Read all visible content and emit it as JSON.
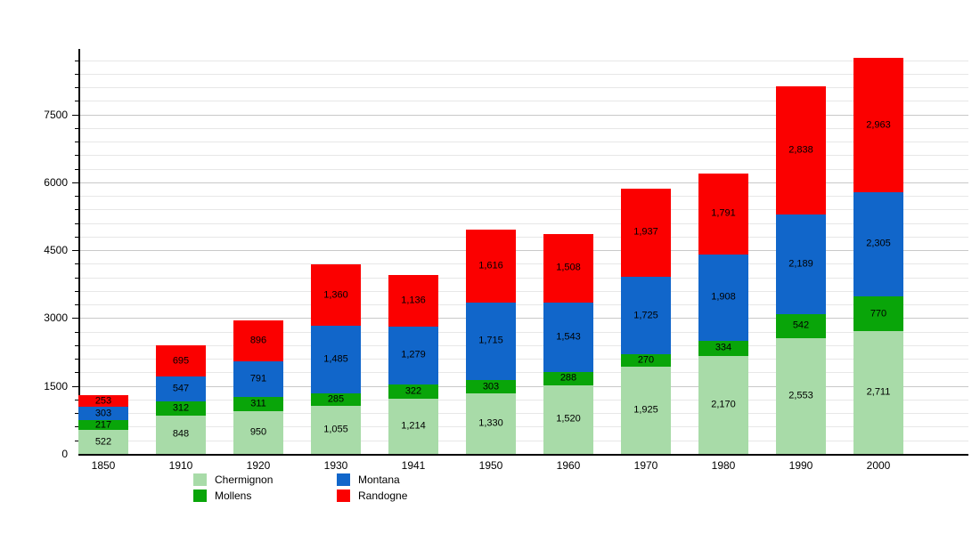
{
  "chart_data": {
    "type": "bar",
    "stacked": true,
    "title": "",
    "xlabel": "",
    "ylabel": "",
    "categories": [
      "1850",
      "1910",
      "1920",
      "1930",
      "1941",
      "1950",
      "1960",
      "1970",
      "1980",
      "1990",
      "2000"
    ],
    "series": [
      {
        "name": "Chermignon",
        "color": "#a8dba8",
        "values": [
          522,
          848,
          950,
          1055,
          1214,
          1330,
          1520,
          1925,
          2170,
          2553,
          2711
        ]
      },
      {
        "name": "Mollens",
        "color": "#09a509",
        "values": [
          217,
          312,
          311,
          285,
          322,
          303,
          288,
          270,
          334,
          542,
          770
        ]
      },
      {
        "name": "Montana",
        "color": "#1166ca",
        "values": [
          303,
          547,
          791,
          1485,
          1279,
          1715,
          1543,
          1725,
          1908,
          2189,
          2305
        ]
      },
      {
        "name": "Randogne",
        "color": "#fb0000",
        "values": [
          253,
          695,
          896,
          1360,
          1136,
          1616,
          1508,
          1937,
          1791,
          2838,
          2963
        ]
      }
    ],
    "ylim": [
      0,
      8950
    ],
    "yticks": [
      0,
      1500,
      3000,
      4500,
      6000,
      7500
    ],
    "minor_step": 300,
    "grid": true,
    "legend_position": "bottom",
    "legend_columns": [
      [
        0,
        1
      ],
      [
        2,
        3
      ]
    ],
    "value_labels": true
  }
}
